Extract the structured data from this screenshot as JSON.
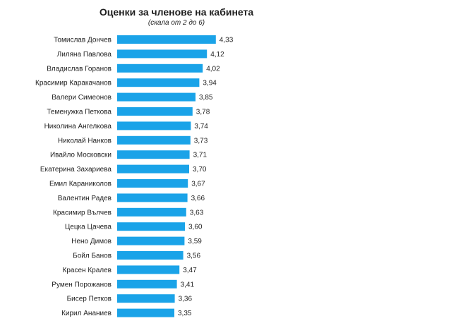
{
  "chart_data": {
    "type": "bar",
    "orientation": "horizontal",
    "title": "Оценки за членове на кабинета",
    "subtitle": "(скала от 2 до 6)",
    "xlabel": "",
    "ylabel": "",
    "xlim": [
      2,
      6
    ],
    "grid": false,
    "bar_color": "#1aa3e8",
    "categories": [
      "Томислав Дончев",
      "Лиляна Павлова",
      "Владислав Горанов",
      "Красимир Каракачанов",
      "Валери Симеонов",
      "Теменужка Петкова",
      "Николина Ангелкова",
      "Николай Нанков",
      "Ивайло Московски",
      "Екатерина Захариева",
      "Емил Караниколов",
      "Валентин Радев",
      "Красимир Вълчев",
      "Цецка Цачева",
      "Нено Димов",
      "Бойл Банов",
      "Красен Кралев",
      "Румен Порожанов",
      "Бисер Петков",
      "Кирил Ананиев"
    ],
    "values": [
      4.33,
      4.12,
      4.02,
      3.94,
      3.85,
      3.78,
      3.74,
      3.73,
      3.71,
      3.7,
      3.67,
      3.66,
      3.63,
      3.6,
      3.59,
      3.56,
      3.47,
      3.41,
      3.36,
      3.35
    ],
    "value_labels": [
      "4,33",
      "4,12",
      "4,02",
      "3,94",
      "3,85",
      "3,78",
      "3,74",
      "3,73",
      "3,71",
      "3,70",
      "3,67",
      "3,66",
      "3,63",
      "3,60",
      "3,59",
      "3,56",
      "3,47",
      "3,41",
      "3,36",
      "3,35"
    ]
  }
}
